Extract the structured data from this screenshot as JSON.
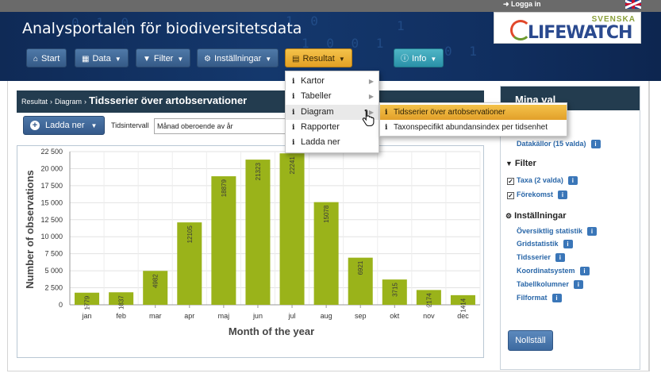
{
  "topbar": {
    "login": "Logga in"
  },
  "header": {
    "site_title": "Analysportalen för biodiversitetsdata",
    "logo_top": "SVENSKA",
    "logo_main": "LIFEWATCH"
  },
  "nav": {
    "start": "Start",
    "data": "Data",
    "filter": "Filter",
    "settings": "Inställningar",
    "result": "Resultat",
    "info": "Info"
  },
  "breadcrumb": {
    "item1": "Resultat",
    "item2": "Diagram",
    "current": "Tidsserier över artobservationer"
  },
  "toolbar": {
    "download": "Ladda ner",
    "interval_label": "Tidsintervall",
    "interval_value": "Månad oberoende av år"
  },
  "menu": {
    "items": [
      "Kartor",
      "Tabeller",
      "Diagram",
      "Rapporter",
      "Ladda ner"
    ]
  },
  "submenu": {
    "items": [
      "Tidsserier över artobservationer",
      "Taxonspecifikt abundansindex per tidsenhet"
    ]
  },
  "panel": {
    "title": "Mina val",
    "data_link": "Datakällor (15 valda)",
    "filter_title": "Filter",
    "filter_taxa": "Taxa (2 valda)",
    "filter_occurrence": "Förekomst",
    "settings_title": "Inställningar",
    "settings_links": [
      "Översiktlig statistik",
      "Gridstatistik",
      "Tidsserier",
      "Koordinatsystem",
      "Tabellkolumner",
      "Filformat"
    ],
    "reset": "Nollställ"
  },
  "chart_data": {
    "type": "bar",
    "categories": [
      "jan",
      "feb",
      "mar",
      "apr",
      "maj",
      "jun",
      "jul",
      "aug",
      "sep",
      "okt",
      "nov",
      "dec"
    ],
    "values": [
      1779,
      1837,
      4982,
      12105,
      18879,
      21323,
      22241,
      15078,
      6921,
      3715,
      2174,
      1414
    ],
    "xlabel": "Month of the year",
    "ylabel": "Number of observations",
    "yticks": [
      "0",
      "2 500",
      "5 000",
      "7 500",
      "10 000",
      "12 500",
      "15 000",
      "17 500",
      "20 000",
      "22 500"
    ],
    "ylim": [
      0,
      22500
    ],
    "bar_color": "#9ab31a",
    "grid": true
  }
}
